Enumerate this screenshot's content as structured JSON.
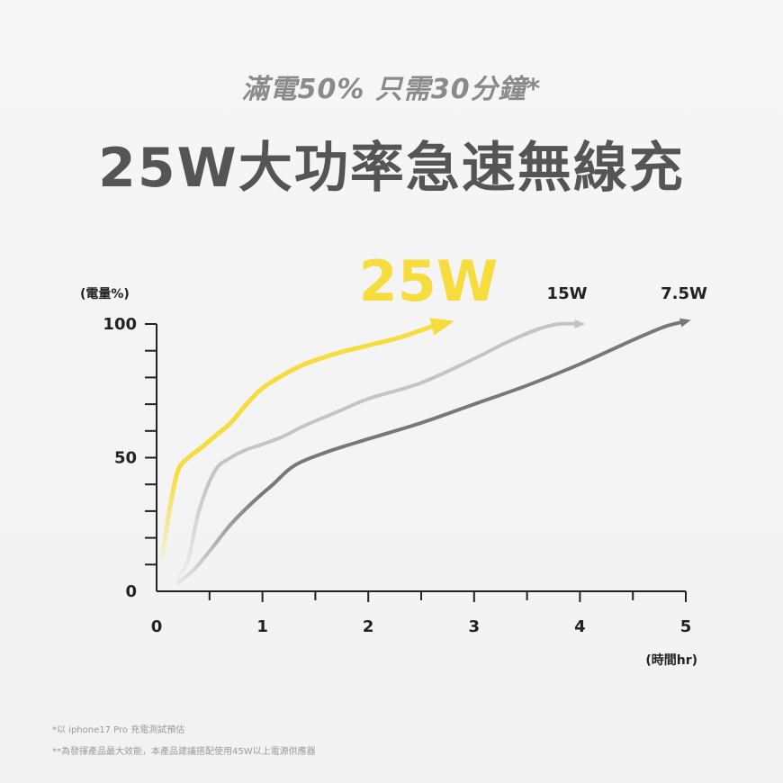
{
  "header": {
    "subtitle": "滿電50% 只需30分鐘*",
    "title": "25W大功率急速無線充"
  },
  "chart_data": {
    "type": "line",
    "ylabel": "(電量%)",
    "xlabel": "(時間hr)",
    "xlim": [
      0,
      5
    ],
    "ylim": [
      0,
      100
    ],
    "x_ticks": [
      "0",
      "1",
      "2",
      "3",
      "4",
      "5"
    ],
    "y_ticks": [
      "0",
      "50",
      "100"
    ],
    "grid": false,
    "series": [
      {
        "name": "25W",
        "color": "#f6dc3c",
        "x": [
          0.05,
          0.12,
          0.2,
          0.3,
          0.4,
          0.55,
          0.7,
          0.85,
          1.0,
          1.2,
          1.4,
          1.7,
          2.0,
          2.3,
          2.6,
          2.7
        ],
        "y": [
          12,
          30,
          45,
          50,
          53,
          58,
          63,
          70,
          76,
          81,
          85,
          89,
          92,
          95,
          99,
          100
        ]
      },
      {
        "name": "15W",
        "color": "#c4c4c4",
        "x": [
          0.2,
          0.3,
          0.4,
          0.55,
          0.7,
          0.85,
          1.0,
          1.2,
          1.4,
          1.7,
          2.0,
          2.5,
          3.0,
          3.3,
          3.6,
          3.8,
          4.0
        ],
        "y": [
          5,
          12,
          30,
          45,
          50,
          53,
          55,
          58,
          62,
          67,
          72,
          78,
          87,
          93,
          98,
          100,
          100
        ]
      },
      {
        "name": "7.5W",
        "color": "#787878",
        "x": [
          0.2,
          0.35,
          0.5,
          0.7,
          0.9,
          1.1,
          1.3,
          1.6,
          2.0,
          2.5,
          3.0,
          3.5,
          4.0,
          4.5,
          4.8,
          5.0
        ],
        "y": [
          3,
          8,
          15,
          25,
          33,
          40,
          47,
          52,
          57,
          63,
          70,
          77,
          85,
          94,
          99,
          101
        ]
      }
    ]
  },
  "footnotes": {
    "note1": "*以 iphone17 Pro 充電測試預估",
    "note2": "**為發揮產品最大效能，本產品建議搭配使用45W以上電源供應器"
  }
}
